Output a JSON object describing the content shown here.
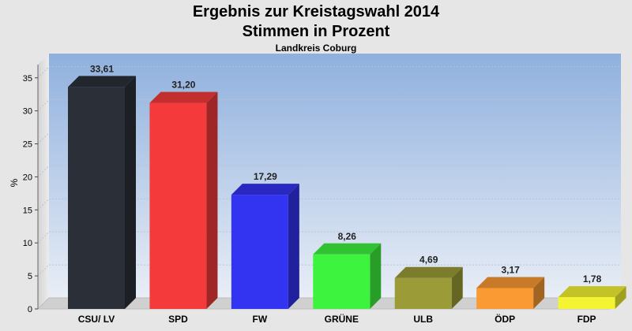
{
  "chart_data": {
    "type": "bar",
    "title": "Ergebnis zur Kreistagswahl 2014",
    "subtitle": "Stimmen in Prozent",
    "caption": "Landkreis Coburg",
    "ylabel": "%",
    "xlabel": "",
    "ylim": [
      0,
      37
    ],
    "yticks": [
      0,
      5,
      10,
      15,
      20,
      25,
      30,
      35
    ],
    "categories": [
      "CSU/ LV",
      "SPD",
      "FW",
      "GRÜNE",
      "ULB",
      "ÖDP",
      "FDP"
    ],
    "values": [
      33.61,
      31.2,
      17.29,
      8.26,
      4.69,
      3.17,
      1.78
    ],
    "value_labels": [
      "33,61",
      "31,20",
      "17,29",
      "8,26",
      "4,69",
      "3,17",
      "1,78"
    ],
    "colors": [
      "#2b2f38",
      "#f43a3a",
      "#3333f2",
      "#3df33d",
      "#9b9b38",
      "#f99a32",
      "#f4f432"
    ],
    "grid": true,
    "legend": "none"
  }
}
